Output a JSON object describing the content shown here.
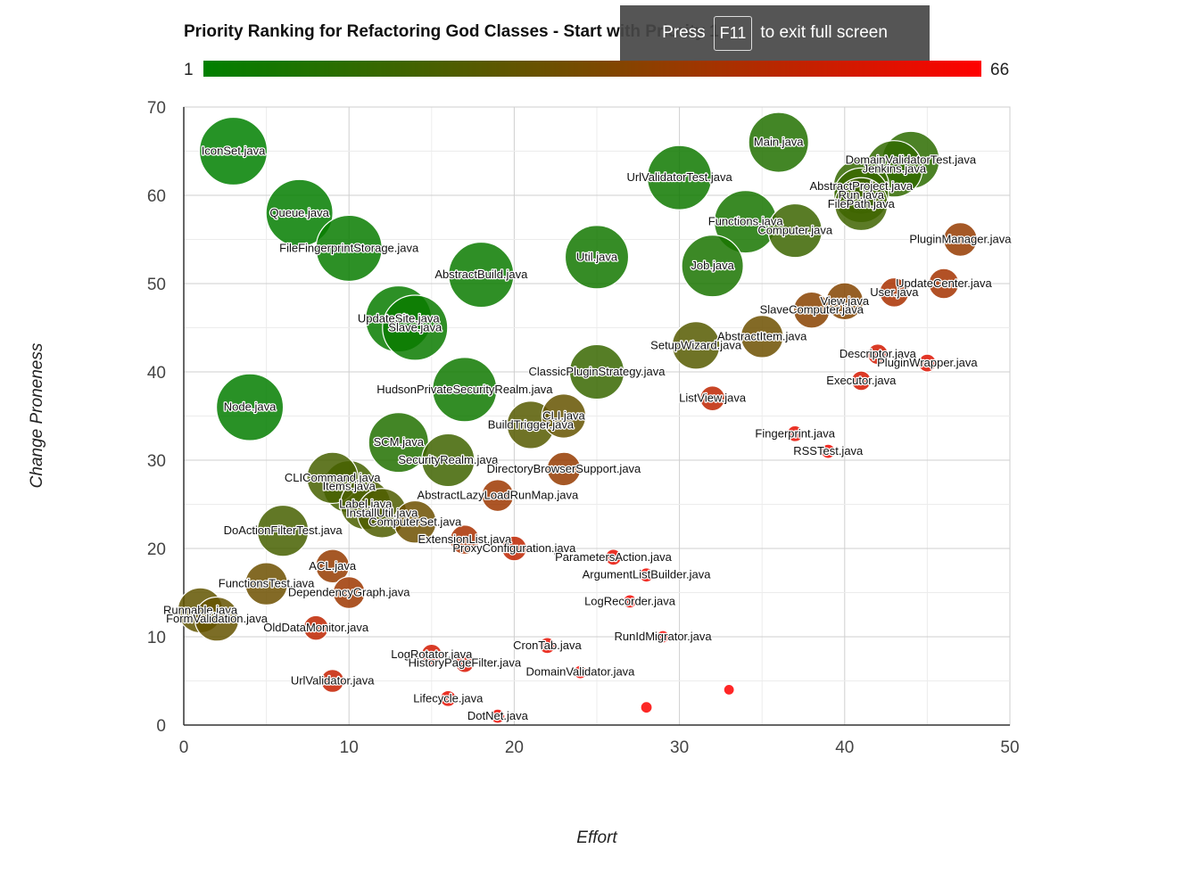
{
  "chart_data": {
    "type": "bubble",
    "title": "Priority Ranking for Refactoring God Classes - Start with Priority 1",
    "xlabel": "Effort",
    "ylabel": "Change Proneness",
    "xlim": [
      0,
      50
    ],
    "ylim": [
      0,
      70
    ],
    "x_ticks": [
      "0",
      "10",
      "20",
      "30",
      "40",
      "50"
    ],
    "y_ticks": [
      "0",
      "10",
      "20",
      "30",
      "40",
      "50",
      "60",
      "70"
    ],
    "grid": true,
    "color_scale": {
      "min_label": "1",
      "max_label": "66",
      "colors": [
        "#008000",
        "#7a4a00",
        "#ff0000"
      ]
    },
    "points": [
      {
        "label": "IconSet.java",
        "x": 3,
        "y": 65,
        "priority": 1
      },
      {
        "label": "Main.java",
        "x": 36,
        "y": 66,
        "priority": 10
      },
      {
        "label": "Queue.java",
        "x": 7,
        "y": 58,
        "priority": 2
      },
      {
        "label": "UrlValidatorTest.java",
        "x": 30,
        "y": 62,
        "priority": 5
      },
      {
        "label": "FileFingerprintStorage.java",
        "x": 10,
        "y": 54,
        "priority": 3
      },
      {
        "label": "DomainValidatorTest.java",
        "x": 44,
        "y": 64,
        "priority": 13
      },
      {
        "label": "Jenkins.java",
        "x": 43,
        "y": 63,
        "priority": 14
      },
      {
        "label": "AbstractProject.java",
        "x": 41,
        "y": 61,
        "priority": 15
      },
      {
        "label": "Run.java",
        "x": 41,
        "y": 60,
        "priority": 16
      },
      {
        "label": "FilePath.java",
        "x": 41,
        "y": 59,
        "priority": 18
      },
      {
        "label": "Functions.java",
        "x": 34,
        "y": 57,
        "priority": 7
      },
      {
        "label": "Computer.java",
        "x": 37,
        "y": 56,
        "priority": 17
      },
      {
        "label": "PluginManager.java",
        "x": 47,
        "y": 55,
        "priority": 40
      },
      {
        "label": "AbstractBuild.java",
        "x": 18,
        "y": 51,
        "priority": 4
      },
      {
        "label": "Util.java",
        "x": 25,
        "y": 53,
        "priority": 6
      },
      {
        "label": "Job.java",
        "x": 32,
        "y": 52,
        "priority": 8
      },
      {
        "label": "UpdateCenter.java",
        "x": 46,
        "y": 50,
        "priority": 44
      },
      {
        "label": "User.java",
        "x": 43,
        "y": 49,
        "priority": 45
      },
      {
        "label": "View.java",
        "x": 40,
        "y": 48,
        "priority": 36
      },
      {
        "label": "SlaveComputer.java",
        "x": 38,
        "y": 47,
        "priority": 37
      },
      {
        "label": "UpdateSite.java",
        "x": 13,
        "y": 46,
        "priority": 3
      },
      {
        "label": "Slave.java",
        "x": 14,
        "y": 45,
        "priority": 4
      },
      {
        "label": "AbstractItem.java",
        "x": 35,
        "y": 44,
        "priority": 30
      },
      {
        "label": "SetupWizard.java",
        "x": 31,
        "y": 43,
        "priority": 24
      },
      {
        "label": "Descriptor.java",
        "x": 42,
        "y": 42,
        "priority": 55
      },
      {
        "label": "PluginWrapper.java",
        "x": 45,
        "y": 41,
        "priority": 58
      },
      {
        "label": "ClassicPluginStrategy.java",
        "x": 25,
        "y": 40,
        "priority": 16
      },
      {
        "label": "Executor.java",
        "x": 41,
        "y": 39,
        "priority": 56
      },
      {
        "label": "HudsonPrivateSecurityRealm.java",
        "x": 17,
        "y": 38,
        "priority": 5
      },
      {
        "label": "ListView.java",
        "x": 32,
        "y": 37,
        "priority": 50
      },
      {
        "label": "Node.java",
        "x": 4,
        "y": 36,
        "priority": 2
      },
      {
        "label": "CLI.java",
        "x": 23,
        "y": 35,
        "priority": 28
      },
      {
        "label": "BuildTrigger.java",
        "x": 21,
        "y": 34,
        "priority": 24
      },
      {
        "label": "Fingerprint.java",
        "x": 37,
        "y": 33,
        "priority": 60
      },
      {
        "label": "SCM.java",
        "x": 13,
        "y": 32,
        "priority": 10
      },
      {
        "label": "RSSTest.java",
        "x": 39,
        "y": 31,
        "priority": 62
      },
      {
        "label": "SecurityRealm.java",
        "x": 16,
        "y": 30,
        "priority": 18
      },
      {
        "label": "DirectoryBrowserSupport.java",
        "x": 23,
        "y": 29,
        "priority": 40
      },
      {
        "label": "CLICommand.java",
        "x": 9,
        "y": 28,
        "priority": 20
      },
      {
        "label": "Items.java",
        "x": 10,
        "y": 27,
        "priority": 19
      },
      {
        "label": "AbstractLazyLoadRunMap.java",
        "x": 19,
        "y": 26,
        "priority": 42
      },
      {
        "label": "Label.java",
        "x": 11,
        "y": 25,
        "priority": 21
      },
      {
        "label": "InstallUtil.java",
        "x": 12,
        "y": 24,
        "priority": 22
      },
      {
        "label": "ComputerSet.java",
        "x": 14,
        "y": 23,
        "priority": 30
      },
      {
        "label": "DoActionFilterTest.java",
        "x": 6,
        "y": 22,
        "priority": 20
      },
      {
        "label": "ExtensionList.java",
        "x": 17,
        "y": 21,
        "priority": 45
      },
      {
        "label": "ProxyConfiguration.java",
        "x": 20,
        "y": 20,
        "priority": 50
      },
      {
        "label": "ParametersAction.java",
        "x": 26,
        "y": 19,
        "priority": 60
      },
      {
        "label": "ACL.java",
        "x": 9,
        "y": 18,
        "priority": 40
      },
      {
        "label": "ArgumentListBuilder.java",
        "x": 28,
        "y": 17,
        "priority": 62
      },
      {
        "label": "FunctionsTest.java",
        "x": 5,
        "y": 16,
        "priority": 30
      },
      {
        "label": "DependencyGraph.java",
        "x": 10,
        "y": 15,
        "priority": 42
      },
      {
        "label": "LogRecorder.java",
        "x": 27,
        "y": 14,
        "priority": 63
      },
      {
        "label": "Runnable.java",
        "x": 1,
        "y": 13,
        "priority": 27
      },
      {
        "label": "FormValidation.java",
        "x": 2,
        "y": 12,
        "priority": 28
      },
      {
        "label": "OldDataMonitor.java",
        "x": 8,
        "y": 11,
        "priority": 50
      },
      {
        "label": "RunIdMigrator.java",
        "x": 29,
        "y": 10,
        "priority": 64
      },
      {
        "label": "CronTab.java",
        "x": 22,
        "y": 9,
        "priority": 60
      },
      {
        "label": "LogRotator.java",
        "x": 15,
        "y": 8,
        "priority": 55
      },
      {
        "label": "HistoryPageFilter.java",
        "x": 17,
        "y": 7,
        "priority": 57
      },
      {
        "label": "DomainValidator.java",
        "x": 24,
        "y": 6,
        "priority": 63
      },
      {
        "label": "UrlValidator.java",
        "x": 9,
        "y": 5,
        "priority": 52
      },
      {
        "label": "",
        "x": 33,
        "y": 4,
        "priority": 66
      },
      {
        "label": "Lifecycle.java",
        "x": 16,
        "y": 3,
        "priority": 60
      },
      {
        "label": "",
        "x": 28,
        "y": 2,
        "priority": 65
      },
      {
        "label": "DotNet.java",
        "x": 19,
        "y": 1,
        "priority": 62
      }
    ]
  },
  "fullscreen_notice": {
    "press": "Press",
    "key": "F11",
    "rest": "to exit full screen"
  }
}
